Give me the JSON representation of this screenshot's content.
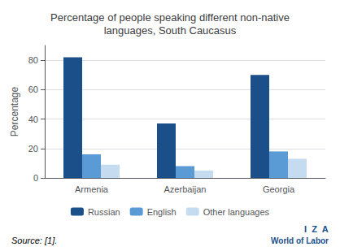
{
  "chart_data": {
    "type": "bar",
    "title": "Percentage of people speaking different non-native\nlanguages, South Caucasus",
    "ylabel": "Percentage",
    "categories": [
      "Armenia",
      "Azerbaijan",
      "Georgia"
    ],
    "series": [
      {
        "name": "Russian",
        "color": "#1B4F8A",
        "values": [
          82,
          37,
          70
        ]
      },
      {
        "name": "English",
        "color": "#5B9BD5",
        "values": [
          16,
          8,
          18
        ]
      },
      {
        "name": "Other languages",
        "color": "#C5DCF0",
        "values": [
          9,
          5,
          13
        ]
      }
    ],
    "ylim": [
      0,
      90
    ],
    "yticks": [
      0,
      20,
      40,
      60,
      80
    ],
    "grid": true,
    "legend": "bottom",
    "annotations": [
      {
        "text": "Source: [1].",
        "color": "#000000"
      },
      {
        "text": "I  Z  A",
        "color": "#1B4F8A"
      },
      {
        "text": "World of Labor",
        "color": "#1B4F8A"
      }
    ]
  }
}
